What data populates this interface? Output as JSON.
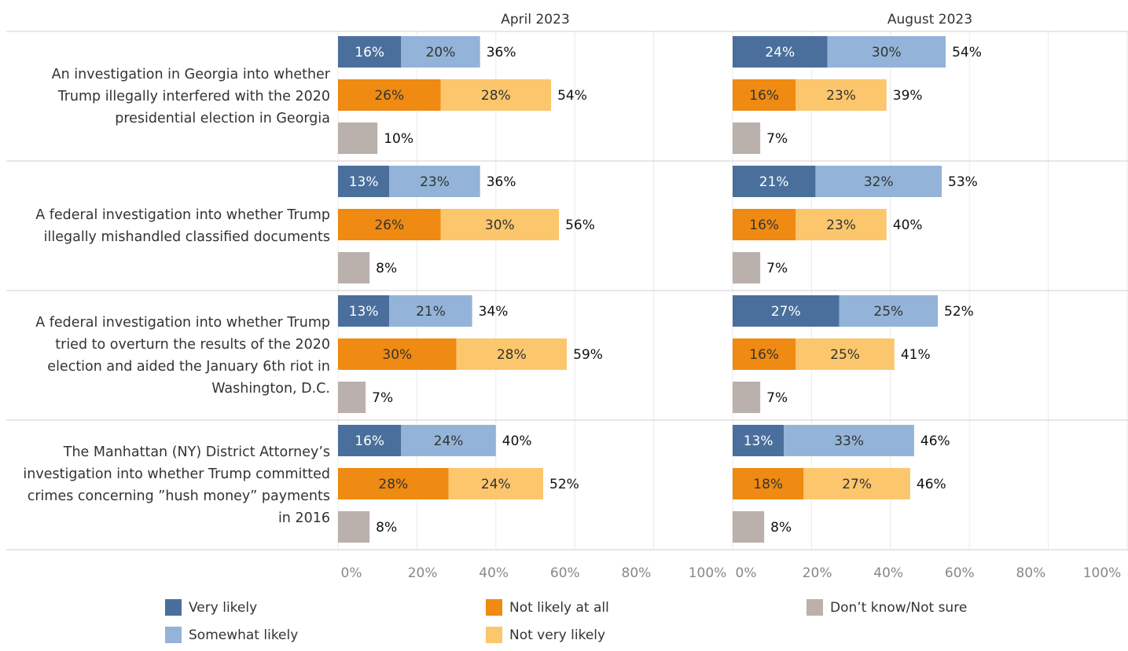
{
  "chart_data": {
    "type": "bar",
    "orientation": "horizontal",
    "stacked": true,
    "panels": [
      "April 2023",
      "August 2023"
    ],
    "categories": [
      "An investigation in Georgia into whether Trump illegally interfered with the 2020 presidential election in Georgia",
      "A federal investigation into whether Trump illegally mishandled classified documents",
      "A federal investigation into whether Trump tried to overturn the results of the 2020 election and aided the January 6th riot in Washington, D.C.",
      "The Manhattan (NY) District Attorney’s investigation into whether Trump committed crimes concerning ”hush money” payments in 2016"
    ],
    "xlim": [
      0,
      100
    ],
    "xticks": [
      {
        "value": 0,
        "label": "0%"
      },
      {
        "value": 20,
        "label": "20%"
      },
      {
        "value": 40,
        "label": "40%"
      },
      {
        "value": 60,
        "label": "60%"
      },
      {
        "value": 80,
        "label": "80%"
      },
      {
        "value": 100,
        "label": "100%"
      }
    ],
    "grid": true,
    "stacks": [
      {
        "series": [
          {
            "name": "Very likely",
            "color": "#4a6f9c",
            "label_color": "#ffffff",
            "values": [
              [
                16,
                13,
                13,
                16
              ],
              [
                24,
                21,
                27,
                13
              ]
            ],
            "value_labels": [
              [
                "16%",
                "13%",
                "13%",
                "16%"
              ],
              [
                "24%",
                "21%",
                "27%",
                "13%"
              ]
            ]
          },
          {
            "name": "Somewhat likely",
            "color": "#93b4d8",
            "label_color": "#333333",
            "values": [
              [
                20,
                23,
                21,
                24
              ],
              [
                30,
                32,
                25,
                33
              ]
            ],
            "value_labels": [
              [
                "20%",
                "23%",
                "21%",
                "24%"
              ],
              [
                "30%",
                "32%",
                "25%",
                "33%"
              ]
            ]
          }
        ],
        "totals": {
          "values": [
            [
              36,
              36,
              34,
              40
            ],
            [
              54,
              53,
              52,
              46
            ]
          ],
          "value_labels": [
            [
              "36%",
              "36%",
              "34%",
              "40%"
            ],
            [
              "54%",
              "53%",
              "52%",
              "46%"
            ]
          ]
        }
      },
      {
        "series": [
          {
            "name": "Not likely at all",
            "color": "#ef8a12",
            "label_color": "#333333",
            "values": [
              [
                26,
                26,
                30,
                28
              ],
              [
                16,
                16,
                16,
                18
              ]
            ],
            "value_labels": [
              [
                "26%",
                "26%",
                "30%",
                "28%"
              ],
              [
                "16%",
                "16%",
                "16%",
                "18%"
              ]
            ]
          },
          {
            "name": "Not very likely",
            "color": "#fcc66d",
            "label_color": "#333333",
            "values": [
              [
                28,
                30,
                28,
                24
              ],
              [
                23,
                23,
                25,
                27
              ]
            ],
            "value_labels": [
              [
                "28%",
                "30%",
                "28%",
                "24%"
              ],
              [
                "23%",
                "23%",
                "25%",
                "27%"
              ]
            ]
          }
        ],
        "totals": {
          "values": [
            [
              54,
              56,
              59,
              52
            ],
            [
              39,
              40,
              41,
              46
            ]
          ],
          "value_labels": [
            [
              "54%",
              "56%",
              "59%",
              "52%"
            ],
            [
              "39%",
              "40%",
              "41%",
              "46%"
            ]
          ]
        }
      },
      {
        "series": [
          {
            "name": "Don’t know/Not sure",
            "color": "#bab0ac",
            "label_color": "#111111",
            "values": [
              [
                10,
                8,
                7,
                8
              ],
              [
                7,
                7,
                7,
                8
              ]
            ],
            "value_labels": [
              [
                "10%",
                "8%",
                "7%",
                "8%"
              ],
              [
                "7%",
                "7%",
                "7%",
                "8%"
              ]
            ]
          }
        ]
      }
    ]
  }
}
